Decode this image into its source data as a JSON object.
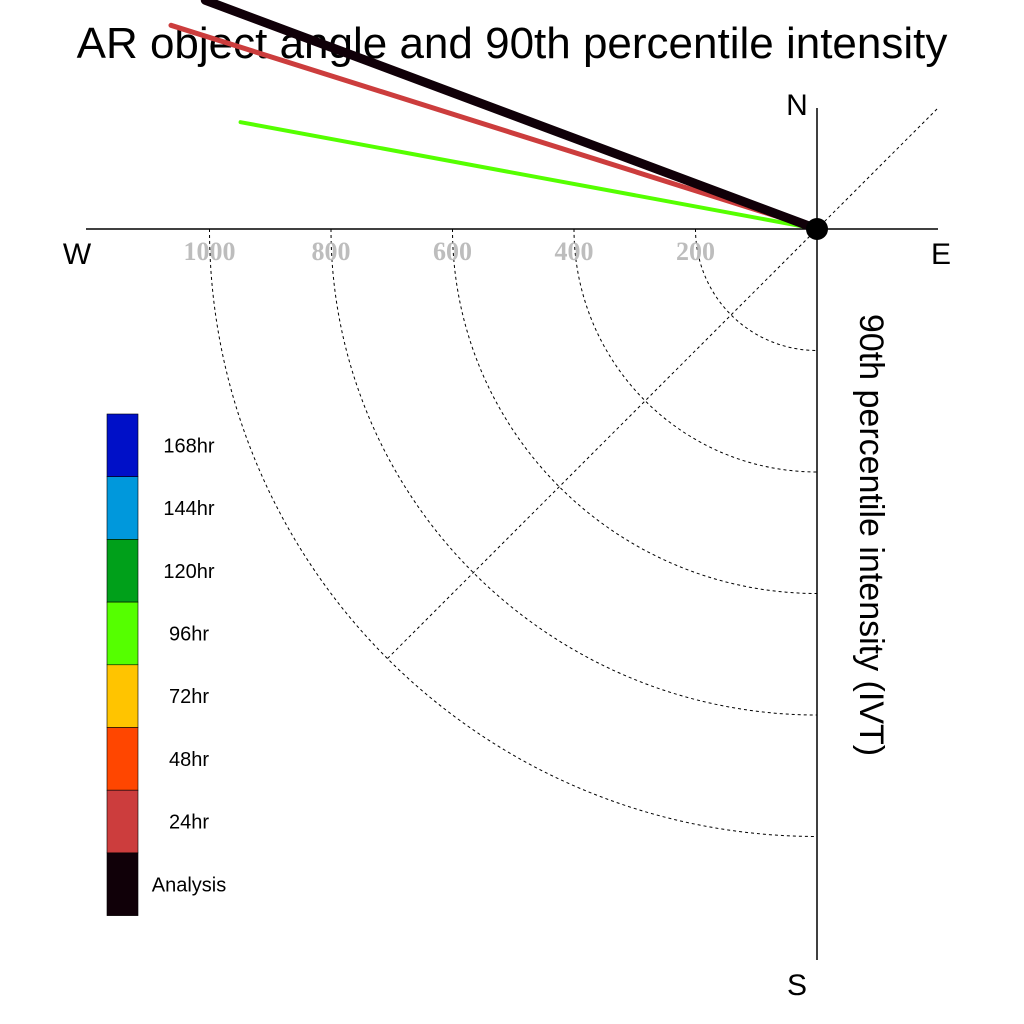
{
  "chart_data": {
    "type": "polar-line",
    "title": "AR object angle and 90th percentile intensity",
    "radial_axis_label": "90th percentile intensity (IVT)",
    "radial_ticks": [
      200,
      400,
      600,
      800,
      1000
    ],
    "radial_range": [
      0,
      1000
    ],
    "grid": true,
    "compass": {
      "north": "N",
      "south": "S",
      "east": "E",
      "west": "W"
    },
    "legend": {
      "placement": "bottom-left",
      "entries": [
        {
          "label": "168hr",
          "color": "#0010c8"
        },
        {
          "label": "144hr",
          "color": "#0098dc"
        },
        {
          "label": "120hr",
          "color": "#00a01a"
        },
        {
          "label": "96hr",
          "color": "#55ff00"
        },
        {
          "label": "72hr",
          "color": "#ffc400"
        },
        {
          "label": "48hr",
          "color": "#ff4600"
        },
        {
          "label": "24hr",
          "color": "#cc3d3d"
        },
        {
          "label": "Analysis",
          "color": "#100008"
        }
      ]
    },
    "series": [
      {
        "name": "96hr",
        "color": "#55ff00",
        "angle_deg": 190.5,
        "intensity": 965
      },
      {
        "name": "24hr",
        "color": "#cc3d3d",
        "angle_deg": 197.5,
        "intensity": 1115
      },
      {
        "name": "Analysis",
        "color": "#100008",
        "angle_deg": 200.5,
        "intensity": 1075
      }
    ]
  }
}
